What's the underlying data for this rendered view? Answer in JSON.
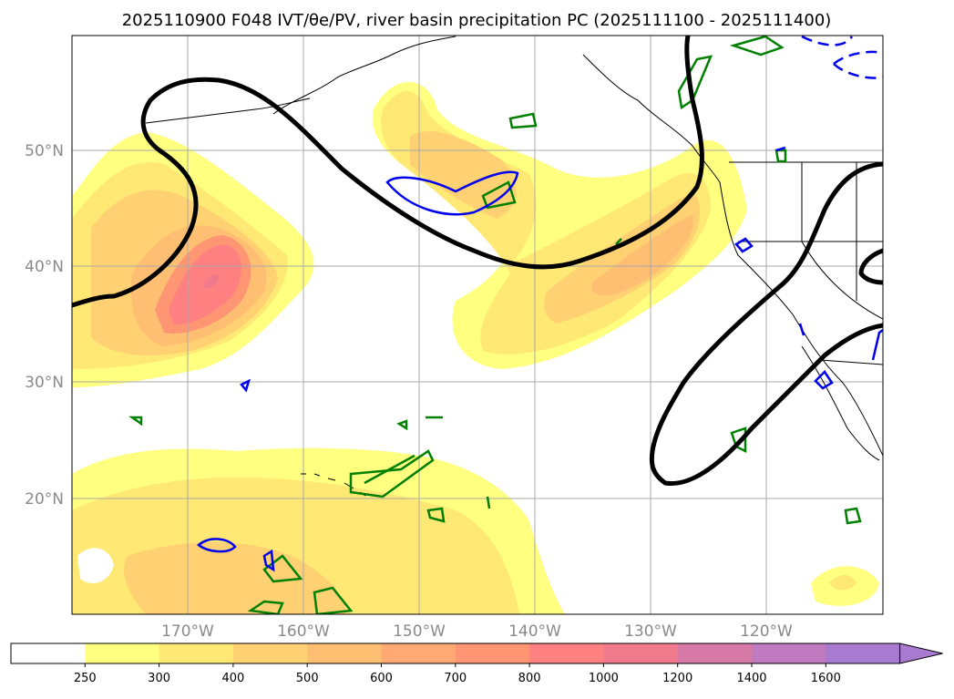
{
  "title": "2025110900 F048 IVT/θe/PV, river basin precipitation PC (2025111100 - 2025111400)",
  "map": {
    "lat_labels": [
      "50°N",
      "40°N",
      "30°N",
      "20°N"
    ],
    "lon_labels": [
      "170°W",
      "160°W",
      "150°W",
      "140°W",
      "130°W",
      "120°W"
    ],
    "lat_range": [
      10,
      60
    ],
    "lon_range": [
      -180,
      -110
    ]
  },
  "colorbar": {
    "levels": [
      "250",
      "300",
      "400",
      "500",
      "600",
      "700",
      "800",
      "1000",
      "1200",
      "1400",
      "1600"
    ],
    "colors": [
      "#ffffff",
      "#ffff80",
      "#ffe873",
      "#ffd173",
      "#ffbf73",
      "#ffa973",
      "#ff9673",
      "#ff8080",
      "#f07a8c",
      "#d87aa8",
      "#c07ac0",
      "#a87ad0"
    ]
  },
  "legend_colors": {
    "pv_contour": "#000000",
    "theta_e_contour": "#0000ee",
    "precip_contour": "#008000"
  }
}
